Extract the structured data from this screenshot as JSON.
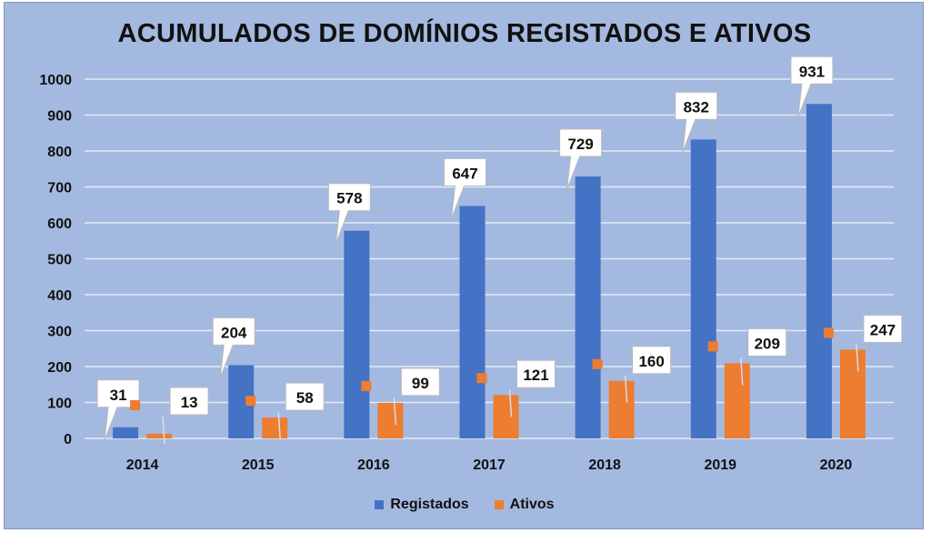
{
  "chart_data": {
    "type": "bar",
    "title": "ACUMULADOS DE DOMÍNIOS REGISTADOS E ATIVOS",
    "categories": [
      "2014",
      "2015",
      "2016",
      "2017",
      "2018",
      "2019",
      "2020"
    ],
    "series": [
      {
        "name": "Registados",
        "color": "#4472c4",
        "values": [
          31,
          204,
          578,
          647,
          729,
          832,
          931
        ]
      },
      {
        "name": "Ativos",
        "color": "#ed7d31",
        "values": [
          13,
          58,
          99,
          121,
          160,
          209,
          247
        ]
      }
    ],
    "ylim": [
      0,
      1000
    ],
    "yticks": [
      0,
      100,
      200,
      300,
      400,
      500,
      600,
      700,
      800,
      900,
      1000
    ],
    "xlabel": "",
    "ylabel": "",
    "grid": true,
    "legend_position": "bottom"
  }
}
